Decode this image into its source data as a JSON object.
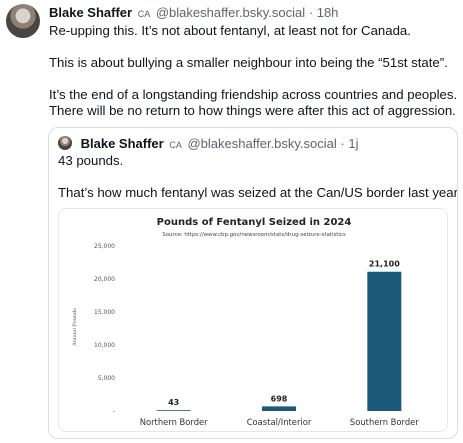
{
  "post": {
    "author_name": "Blake Shaffer",
    "country": "CA",
    "handle": "@blakeshaffer.bsky.social",
    "time": "· 18h",
    "paragraphs": [
      "Re-upping this. It’s not about fentanyl, at least not for Canada.",
      "This is about bullying a smaller neighbour into being the “51st state”.",
      "It’s the end of a longstanding friendship across countries and peoples.",
      "There will be no return to how things were after this act of aggression."
    ]
  },
  "quote": {
    "author_name": "Blake Shaffer",
    "country": "CA",
    "handle": "@blakeshaffer.bsky.social",
    "time": "· 1j",
    "paragraphs": [
      "43 pounds.",
      "That’s how much fentanyl was seized at the Can/US border last year."
    ]
  },
  "chart_data": {
    "type": "bar",
    "title": "Pounds of Fentanyl Seized in 2024",
    "subtitle": "Source: https://www.cbp.gov/newsroom/stats/drug-seizure-statistics",
    "ylabel": "Annual Pounds",
    "xlabel": "",
    "categories": [
      "Northern Border",
      "Coastal/Interior",
      "Southern Border"
    ],
    "values": [
      43,
      698,
      21100
    ],
    "value_labels": [
      "43",
      "698",
      "21,100"
    ],
    "yticks": [
      0,
      5000,
      10000,
      15000,
      20000,
      25000
    ],
    "ytick_labels": [
      "-",
      "5,000",
      "10,000",
      "15,000",
      "20,000",
      "25,000"
    ],
    "ylim": [
      0,
      25000
    ],
    "grid": false,
    "bar_color": "#1b5a7a"
  }
}
